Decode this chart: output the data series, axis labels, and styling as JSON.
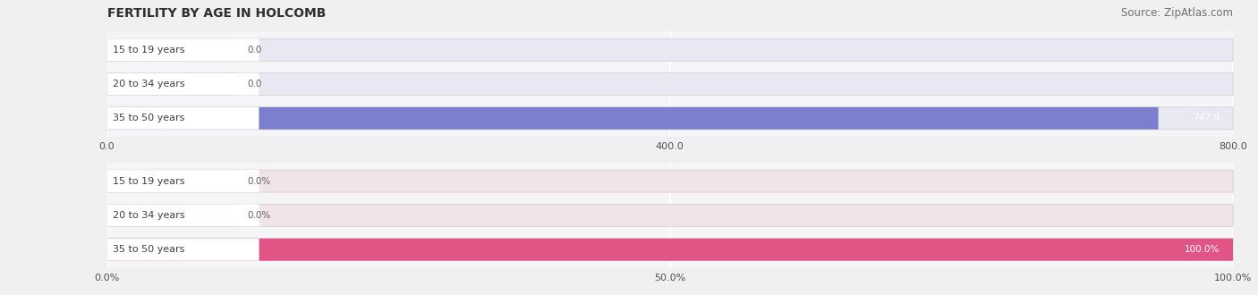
{
  "title": "FERTILITY BY AGE IN HOLCOMB",
  "source": "Source: ZipAtlas.com",
  "top_chart": {
    "categories": [
      "15 to 19 years",
      "20 to 34 years",
      "35 to 50 years"
    ],
    "values": [
      0.0,
      0.0,
      747.0
    ],
    "xlim": [
      0,
      800.0
    ],
    "xticks": [
      0.0,
      400.0,
      800.0
    ],
    "xticklabels": [
      "0.0",
      "400.0",
      "800.0"
    ],
    "bar_color_full": "#7b7fce",
    "bar_color_small": "#a8aade",
    "bar_bg_color": "#e8e8f2",
    "label_bg": "#ffffff",
    "small_bar_width": 0.115
  },
  "bottom_chart": {
    "categories": [
      "15 to 19 years",
      "20 to 34 years",
      "35 to 50 years"
    ],
    "values": [
      0.0,
      0.0,
      100.0
    ],
    "xlim": [
      0,
      100.0
    ],
    "xticks": [
      0.0,
      50.0,
      100.0
    ],
    "xticklabels": [
      "0.0%",
      "50.0%",
      "100.0%"
    ],
    "bar_color_full": "#e05585",
    "bar_color_small": "#f0a0b8",
    "bar_bg_color": "#f0e4ea",
    "label_bg": "#ffffff",
    "small_bar_width": 0.115
  },
  "fig_bg": "#f0f0f0",
  "panel_bg": "#f5f5f8",
  "label_color": "#404040",
  "value_color_inside": "#ffffff",
  "value_color_outside": "#606060",
  "title_fontsize": 10,
  "source_fontsize": 8.5,
  "label_fontsize": 8,
  "value_fontsize": 7.5,
  "tick_fontsize": 8
}
